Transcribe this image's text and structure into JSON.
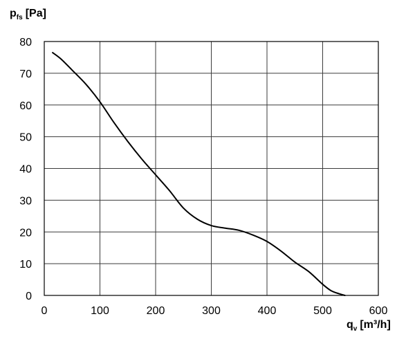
{
  "chart_data": {
    "type": "line",
    "x_axis": {
      "label_main": "q",
      "label_sub": "v",
      "label_unit": "[m³/h]",
      "min": 0,
      "max": 600,
      "ticks": [
        0,
        100,
        200,
        300,
        400,
        500,
        600
      ]
    },
    "y_axis": {
      "label_main": "p",
      "label_sub": "fs",
      "label_unit": "[Pa]",
      "min": 0,
      "max": 80,
      "ticks": [
        0,
        10,
        20,
        30,
        40,
        50,
        60,
        70,
        80
      ]
    },
    "grid": true,
    "series": [
      {
        "color": "#000000",
        "points": [
          [
            15,
            76.5
          ],
          [
            30,
            74.5
          ],
          [
            50,
            71
          ],
          [
            75,
            66.5
          ],
          [
            100,
            61
          ],
          [
            125,
            54.5
          ],
          [
            150,
            48.5
          ],
          [
            175,
            43
          ],
          [
            200,
            38
          ],
          [
            225,
            33
          ],
          [
            250,
            27.5
          ],
          [
            275,
            24
          ],
          [
            300,
            22
          ],
          [
            325,
            21.2
          ],
          [
            350,
            20.5
          ],
          [
            375,
            19
          ],
          [
            400,
            17
          ],
          [
            425,
            14
          ],
          [
            450,
            10.5
          ],
          [
            475,
            7.5
          ],
          [
            500,
            3.5
          ],
          [
            515,
            1.5
          ],
          [
            530,
            0.5
          ],
          [
            540,
            0
          ]
        ]
      }
    ]
  }
}
